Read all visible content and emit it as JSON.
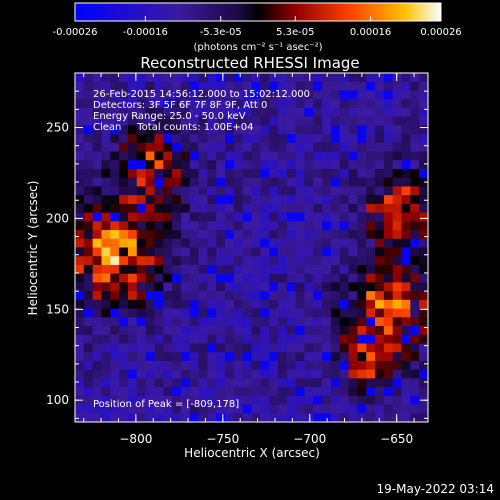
{
  "colorbar": {
    "tick_labels": [
      "-0.00026",
      "-0.00016",
      "-5.3e-05",
      "5.3e-05",
      "0.00016",
      "0.00026"
    ],
    "tick_values": [
      -0.00026,
      -0.00016,
      -5.3e-05,
      5.3e-05,
      0.00016,
      0.00026
    ],
    "range": [
      -0.00026,
      0.00026
    ],
    "units_label": "(photons cm⁻² s⁻¹ asec⁻²)"
  },
  "chart_data": {
    "type": "heatmap",
    "title": "Reconstructed RHESSI Image",
    "xlabel": "Heliocentric X (arcsec)",
    "ylabel": "Heliocentric Y (arcsec)",
    "xlim": [
      -835,
      -632
    ],
    "ylim": [
      88,
      280
    ],
    "x_ticks": [
      -800,
      -750,
      -700,
      -650
    ],
    "x_tick_labels": [
      "−800",
      "−750",
      "−700",
      "−650"
    ],
    "y_ticks": [
      100,
      150,
      200,
      250
    ],
    "y_tick_labels": [
      "100",
      "150",
      "200",
      "250"
    ],
    "colormap_stops": [
      "#0000ff",
      "#2a1a8a",
      "#5a1aa0",
      "#000000",
      "#8a0000",
      "#ff4000",
      "#ffb000",
      "#ffffff"
    ],
    "bright_regions": [
      {
        "x": -812,
        "y": 180,
        "r": 28,
        "amp": 0.00026
      },
      {
        "x": -790,
        "y": 230,
        "r": 22,
        "amp": 0.00018
      },
      {
        "x": -655,
        "y": 150,
        "r": 25,
        "amp": 0.00022
      },
      {
        "x": -648,
        "y": 205,
        "r": 22,
        "amp": 0.00018
      },
      {
        "x": -668,
        "y": 120,
        "r": 18,
        "amp": 0.00014
      }
    ],
    "annotations": [
      "26-Feb-2015 14:56:12.000 to 15:02:12.000",
      "Detectors: 3F 5F 6F 7F 8F 9F, Att 0",
      "Energy Range: 25.0 - 50.0 keV",
      "Clean     Total counts: 1.00E+04"
    ],
    "peak_label": "Position of Peak = [-809,178]"
  },
  "footer": {
    "timestamp": "19-May-2022 03:14"
  }
}
